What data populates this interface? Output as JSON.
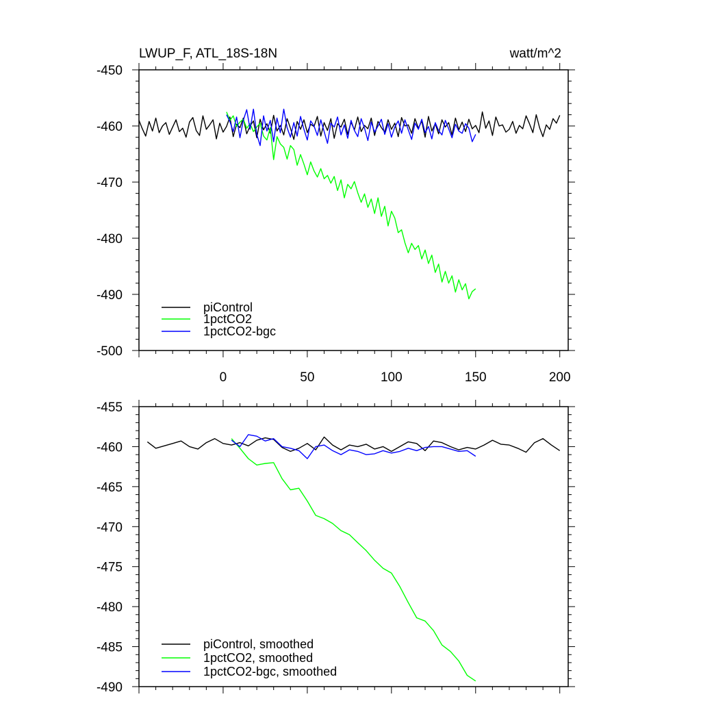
{
  "chart_data": [
    {
      "type": "line",
      "title": "LWUP_F, ATL_18S-18N",
      "units": "watt/m^2",
      "xlim": [
        -50,
        205
      ],
      "ylim": [
        -500,
        -450
      ],
      "xticks": [
        0,
        50,
        100,
        150,
        200
      ],
      "yticks": [
        -450,
        -460,
        -470,
        -480,
        -490,
        -500
      ],
      "legend_position": "bottom-left",
      "series": [
        {
          "name": "piControl",
          "color": "#000000",
          "x_start": -50,
          "x_step": 2,
          "values": [
            -459.0,
            -460.5,
            -461.8,
            -459.2,
            -460.9,
            -458.6,
            -461.2,
            -460.0,
            -459.4,
            -461.5,
            -460.2,
            -458.9,
            -461.0,
            -460.4,
            -462.0,
            -459.3,
            -458.5,
            -460.8,
            -461.7,
            -458.2,
            -460.6,
            -459.8,
            -458.9,
            -462.3,
            -459.5,
            -461.1,
            -460.1,
            -458.4,
            -461.9,
            -459.7,
            -460.3,
            -458.6,
            -461.4,
            -460.0,
            -459.1,
            -462.1,
            -458.8,
            -460.7,
            -459.6,
            -461.3,
            -458.1,
            -460.9,
            -459.9,
            -461.6,
            -458.7,
            -460.4,
            -462.4,
            -459.2,
            -460.6,
            -458.9,
            -461.2,
            -459.7,
            -460.1,
            -458.3,
            -461.8,
            -459.4,
            -460.8,
            -458.7,
            -462.2,
            -459.6,
            -460.2,
            -458.8,
            -461.5,
            -459.3,
            -460.7,
            -458.4,
            -461.0,
            -459.9,
            -460.5,
            -458.6,
            -461.7,
            -459.2,
            -460.3,
            -461.1,
            -458.9,
            -460.6,
            -459.5,
            -461.9,
            -458.5,
            -460.0,
            -459.8,
            -461.3,
            -458.7,
            -460.4,
            -459.1,
            -462.0,
            -458.3,
            -460.9,
            -459.6,
            -461.4,
            -458.9,
            -460.2,
            -459.4,
            -461.6,
            -458.6,
            -460.7,
            -459.3,
            -461.0,
            -458.8,
            -460.5,
            -459.9,
            -461.2,
            -457.5,
            -460.4,
            -459.1,
            -461.7,
            -458.4,
            -460.0,
            -459.8,
            -461.1,
            -460.6,
            -459.2,
            -461.3,
            -459.9,
            -460.5,
            -458.2,
            -459.6,
            -461.2,
            -458.0,
            -460.3,
            -461.9,
            -459.8,
            -460.6,
            -458.7,
            -459.5,
            -458.1
          ]
        },
        {
          "name": "1pctCO2",
          "color": "#00ff00",
          "x_start": 2,
          "x_step": 2,
          "values": [
            -457.5,
            -459.0,
            -458.2,
            -460.1,
            -459.3,
            -458.8,
            -460.4,
            -459.6,
            -461.0,
            -460.2,
            -459.5,
            -461.8,
            -462.5,
            -460.3,
            -466.0,
            -461.9,
            -463.2,
            -463.8,
            -465.9,
            -463.5,
            -464.2,
            -467.0,
            -465.1,
            -466.8,
            -468.7,
            -466.4,
            -468.0,
            -469.1,
            -467.6,
            -469.4,
            -468.8,
            -470.2,
            -469.0,
            -471.5,
            -469.6,
            -472.8,
            -470.4,
            -471.2,
            -469.9,
            -471.9,
            -473.6,
            -472.1,
            -474.5,
            -473.0,
            -475.6,
            -472.8,
            -476.1,
            -474.3,
            -477.8,
            -475.2,
            -476.4,
            -479.0,
            -478.5,
            -480.8,
            -482.6,
            -480.9,
            -482.0,
            -481.3,
            -483.7,
            -482.1,
            -484.5,
            -483.0,
            -486.1,
            -484.6,
            -487.8,
            -485.9,
            -488.0,
            -486.7,
            -489.6,
            -487.4,
            -489.2,
            -488.1,
            -490.8,
            -489.5,
            -489.0
          ]
        },
        {
          "name": "1pctCO2-bgc",
          "color": "#0000ff",
          "x_start": 2,
          "x_step": 2,
          "values": [
            -458.0,
            -459.2,
            -461.0,
            -458.4,
            -462.1,
            -459.0,
            -457.1,
            -460.6,
            -457.0,
            -461.5,
            -463.5,
            -458.2,
            -460.9,
            -459.0,
            -462.8,
            -458.6,
            -461.2,
            -457.0,
            -460.3,
            -462.0,
            -459.4,
            -461.8,
            -458.3,
            -460.6,
            -462.5,
            -459.1,
            -460.0,
            -461.7,
            -458.9,
            -461.0,
            -463.1,
            -459.5,
            -460.2,
            -458.4,
            -461.6,
            -459.8,
            -462.2,
            -459.0,
            -460.8,
            -461.9,
            -458.7,
            -460.4,
            -462.6,
            -459.3,
            -461.1,
            -460.0,
            -458.8,
            -461.5,
            -459.6,
            -462.0,
            -460.2,
            -459.1,
            -461.3,
            -458.9,
            -460.7,
            -462.4,
            -459.5,
            -460.6,
            -458.8,
            -461.2,
            -460.1,
            -462.3,
            -459.4,
            -460.8,
            -461.6,
            -459.0,
            -460.5,
            -462.1,
            -459.7,
            -460.9,
            -461.3,
            -459.6,
            -460.4,
            -462.8,
            -461.5
          ]
        }
      ]
    },
    {
      "type": "line",
      "xlim": [
        -50,
        205
      ],
      "ylim": [
        -490,
        -455
      ],
      "yticks": [
        -455,
        -460,
        -465,
        -470,
        -475,
        -480,
        -485,
        -490
      ],
      "legend_position": "bottom-left",
      "series": [
        {
          "name": "piControl, smoothed",
          "color": "#000000",
          "x_start": -45,
          "x_step": 5,
          "values": [
            -459.4,
            -460.2,
            -459.9,
            -459.6,
            -459.3,
            -460.0,
            -460.3,
            -459.5,
            -459.0,
            -459.6,
            -459.8,
            -459.5,
            -459.9,
            -459.2,
            -458.9,
            -459.1,
            -460.1,
            -460.6,
            -460.2,
            -459.6,
            -460.4,
            -458.8,
            -459.8,
            -460.4,
            -459.8,
            -460.0,
            -459.7,
            -460.3,
            -460.0,
            -460.6,
            -460.0,
            -459.4,
            -459.6,
            -460.5,
            -459.3,
            -459.5,
            -460.0,
            -460.4,
            -460.1,
            -460.3,
            -459.8,
            -459.2,
            -459.7,
            -459.8,
            -460.2,
            -460.7,
            -459.5,
            -459.0,
            -459.8,
            -460.5
          ]
        },
        {
          "name": "1pctCO2, smoothed",
          "color": "#00ff00",
          "x_start": 5,
          "x_step": 5,
          "values": [
            -459.0,
            -460.2,
            -461.5,
            -462.3,
            -462.1,
            -462.0,
            -464.0,
            -465.4,
            -465.2,
            -466.8,
            -468.6,
            -469.0,
            -469.6,
            -470.5,
            -471.0,
            -472.0,
            -473.0,
            -474.2,
            -475.2,
            -475.8,
            -477.5,
            -479.5,
            -481.4,
            -481.8,
            -483.0,
            -484.8,
            -485.6,
            -486.8,
            -488.6,
            -489.3
          ]
        },
        {
          "name": "1pctCO2-bgc, smoothed",
          "color": "#0000ff",
          "x_start": 5,
          "x_step": 5,
          "values": [
            -459.2,
            -460.0,
            -458.5,
            -458.7,
            -459.3,
            -459.0,
            -460.0,
            -460.2,
            -460.5,
            -461.5,
            -460.0,
            -459.8,
            -460.5,
            -461.0,
            -460.4,
            -460.6,
            -461.0,
            -460.9,
            -460.5,
            -460.8,
            -460.6,
            -460.2,
            -460.5,
            -460.1,
            -460.0,
            -460.0,
            -460.3,
            -460.6,
            -460.5,
            -461.2
          ]
        }
      ]
    }
  ]
}
